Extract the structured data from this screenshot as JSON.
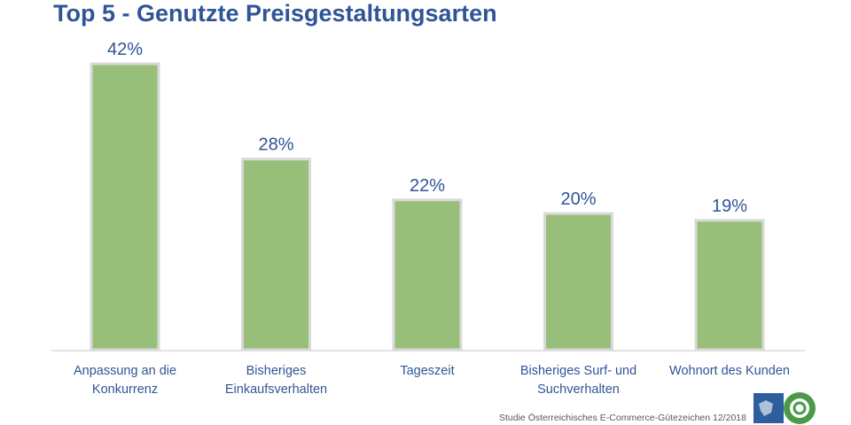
{
  "title": "Top 5 - Genutzte Preisgestaltungsarten",
  "footer": "Studie Österreichisches E-Commerce-Gütezeichen 12/2018",
  "logo_text": "Österreichisches E-Commerce Gütezeichen",
  "colors": {
    "bar": "#97bf7a",
    "bar_border": "#d9d9d9",
    "label": "#2f5597"
  },
  "chart_data": {
    "type": "bar",
    "title": "Top 5 - Genutzte Preisgestaltungsarten",
    "categories": [
      [
        "Anpassung an die",
        "Konkurrenz"
      ],
      [
        "Bisheriges",
        "Einkaufsverhalten"
      ],
      [
        "Tageszeit"
      ],
      [
        "Bisheriges Surf- und",
        "Suchverhalten"
      ],
      [
        "Wohnort des Kunden"
      ]
    ],
    "values": [
      42,
      28,
      22,
      20,
      19
    ],
    "data_labels": [
      "42%",
      "28%",
      "22%",
      "20%",
      "19%"
    ],
    "ylim": [
      0,
      42
    ],
    "grid": false,
    "legend": "none"
  }
}
